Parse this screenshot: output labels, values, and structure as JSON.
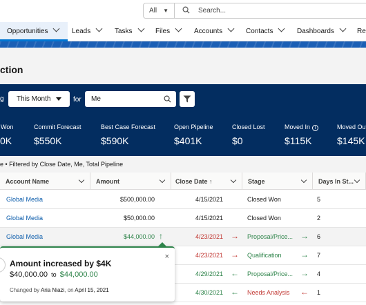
{
  "header": {
    "search_scope": "All",
    "search_placeholder": "Search..."
  },
  "nav": {
    "items": [
      {
        "label": "Opportunities",
        "active": true
      },
      {
        "label": "Leads"
      },
      {
        "label": "Tasks"
      },
      {
        "label": "Files"
      },
      {
        "label": "Accounts"
      },
      {
        "label": "Contacts"
      },
      {
        "label": "Dashboards"
      },
      {
        "label": "Rep"
      }
    ]
  },
  "page": {
    "title_fragment": "ction"
  },
  "filters": {
    "label_left": "g",
    "period": "This Month",
    "for_label": "for",
    "owner": "Me"
  },
  "metrics": [
    {
      "label": "Won",
      "value": "0K"
    },
    {
      "label": "Commit Forecast",
      "value": "$550K"
    },
    {
      "label": "Best Case Forecast",
      "value": "$590K"
    },
    {
      "label": "Open Pipeline",
      "value": "$401K"
    },
    {
      "label": "Closed Lost",
      "value": "$0"
    },
    {
      "label": "Moved In",
      "value": "$115K"
    },
    {
      "label": "Moved Out",
      "value": "$145K"
    }
  ],
  "table": {
    "subtitle": "e • Filtered by Close Date, Me, Total Pipeline",
    "columns": [
      "Account Name",
      "Amount",
      "Close Date ↑",
      "Stage",
      "Days In St..."
    ],
    "rows": [
      {
        "account": "Global Media",
        "amount": "$500,000.00",
        "close_date": "4/15/2021",
        "stage": "Closed Won",
        "days": "5"
      },
      {
        "account": "Global Media",
        "amount": "$50,000.00",
        "close_date": "4/15/2021",
        "stage": "Closed Won",
        "days": "2"
      },
      {
        "account": "Global Media",
        "amount": "$44,000.00",
        "close_date": "4/23/2021",
        "stage": "Proposal/Price...",
        "days": "6"
      },
      {
        "account": "",
        "amount": "",
        "close_date": "4/23/2021",
        "stage": "Qualification",
        "days": "7"
      },
      {
        "account": "",
        "amount": "",
        "close_date": "4/29/2021",
        "stage": "Proposal/Price...",
        "days": "4"
      },
      {
        "account": "",
        "amount": "",
        "close_date": "4/30/2021",
        "stage": "Needs Analysis",
        "days": "1"
      }
    ]
  },
  "popover": {
    "title": "Amount increased by $4K",
    "old_value": "$40,000.00",
    "to": "to",
    "new_value": "$44,000.00",
    "changed_by_prefix": "Changed by",
    "changed_by": "Aria Niazi",
    "on_prefix": ", on",
    "date": "April 15, 2021",
    "close": "×"
  },
  "colors": {
    "panel": "#032d60",
    "brand_blue": "#0176d3",
    "increase_green": "#2e844a",
    "decrease_red": "#c23934"
  }
}
